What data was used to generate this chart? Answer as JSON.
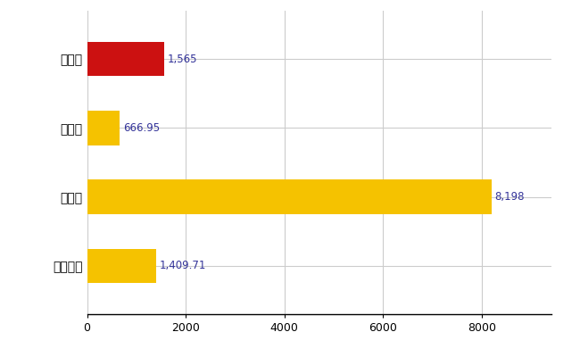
{
  "categories": [
    "千曲市",
    "県平均",
    "県最大",
    "全国平均"
  ],
  "values": [
    1565,
    666.95,
    8198,
    1409.71
  ],
  "labels": [
    "1,565",
    "666.95",
    "8,198",
    "1,409.71"
  ],
  "bar_colors": [
    "#cc1111",
    "#f5c200",
    "#f5c200",
    "#f5c200"
  ],
  "xlim_max": 9400,
  "xticks": [
    0,
    2000,
    4000,
    6000,
    8000
  ],
  "background_color": "#ffffff",
  "grid_color": "#cccccc",
  "label_color": "#333399",
  "label_fontsize": 8.5,
  "ytick_fontsize": 10,
  "xtick_fontsize": 9,
  "bar_height": 0.5
}
